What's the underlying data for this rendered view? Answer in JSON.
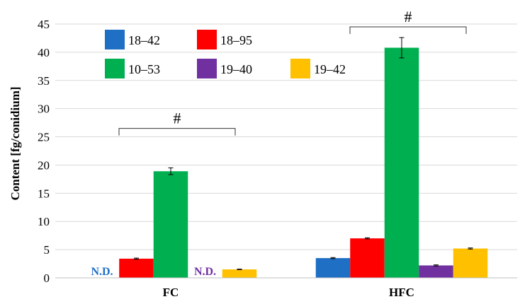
{
  "chart_data": {
    "type": "bar",
    "title": "",
    "xlabel": "",
    "ylabel": "Content [fg/conidium]",
    "ylim": [
      0,
      45
    ],
    "yticks": [
      0,
      5,
      10,
      15,
      20,
      25,
      30,
      35,
      40,
      45
    ],
    "grid": true,
    "legend_position": "top-left",
    "categories": [
      "FC",
      "HFC"
    ],
    "series": [
      {
        "name": "18–42",
        "color": "#1f6fc5",
        "values": [
          0,
          3.5
        ],
        "errors": [
          0,
          0.1
        ],
        "labels": [
          "N.D.",
          ""
        ]
      },
      {
        "name": "18–95",
        "color": "#ff0000",
        "values": [
          3.4,
          7.0
        ],
        "errors": [
          0.1,
          0.1
        ],
        "labels": [
          "",
          ""
        ]
      },
      {
        "name": "10–53",
        "color": "#00b050",
        "values": [
          18.9,
          40.8
        ],
        "errors": [
          0.6,
          1.8
        ],
        "labels": [
          "",
          ""
        ]
      },
      {
        "name": "19–40",
        "color": "#7030a0",
        "values": [
          0,
          2.2
        ],
        "errors": [
          0,
          0.1
        ],
        "labels": [
          "N.D.",
          ""
        ]
      },
      {
        "name": "19–42",
        "color": "#ffc000",
        "values": [
          1.5,
          5.2
        ],
        "errors": [
          0.05,
          0.1
        ],
        "labels": [
          "",
          ""
        ]
      }
    ],
    "annotations": [
      {
        "category": "FC",
        "text": "#",
        "y": 26.5
      },
      {
        "category": "HFC",
        "text": "#",
        "y": 44.5
      }
    ]
  }
}
